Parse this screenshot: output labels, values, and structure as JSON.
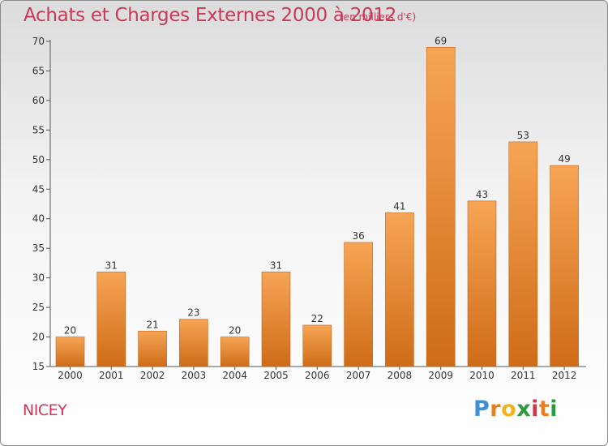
{
  "title": "Achats et Charges Externes 2000 à 2012",
  "subtitle": "(en milliers d'€)",
  "town": "NICEY",
  "logo": {
    "letters": [
      "P",
      "r",
      "o",
      "x",
      "i",
      "t",
      "i"
    ],
    "colors": [
      "#3f8fd6",
      "#e8801f",
      "#f0b323",
      "#2e9a3e",
      "#d9334a",
      "#e8801f",
      "#2e9a3e"
    ]
  },
  "colors": {
    "bar_top": "#f6a555",
    "bar_bottom": "#cf6c18",
    "title": "#c8395a"
  },
  "chart_data": {
    "type": "bar",
    "categories": [
      "2000",
      "2001",
      "2002",
      "2003",
      "2004",
      "2005",
      "2006",
      "2007",
      "2008",
      "2009",
      "2010",
      "2011",
      "2012"
    ],
    "values": [
      20,
      31,
      21,
      23,
      20,
      31,
      22,
      36,
      41,
      69,
      43,
      53,
      49
    ],
    "ylim": [
      15,
      70
    ],
    "yticks": [
      15,
      20,
      25,
      30,
      35,
      40,
      45,
      50,
      55,
      60,
      65,
      70
    ],
    "grid": false,
    "data_labels": true
  }
}
